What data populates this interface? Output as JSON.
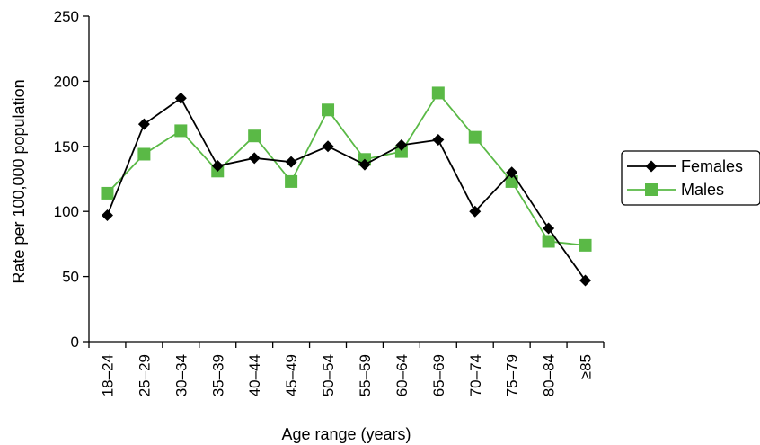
{
  "chart_data": {
    "type": "line",
    "xlabel": "Age range (years)",
    "ylabel": "Rate per 100,000 population",
    "categories": [
      "18–24",
      "25–29",
      "30–34",
      "35–39",
      "40–44",
      "45–49",
      "50–54",
      "55–59",
      "60–64",
      "65–69",
      "70–74",
      "75–79",
      "80–84",
      "≥85"
    ],
    "ylim": [
      0,
      250
    ],
    "yticks": [
      0,
      50,
      100,
      150,
      200,
      250
    ],
    "grid": false,
    "legend_position": "right",
    "series": [
      {
        "name": "Females",
        "marker": "diamond",
        "color": "#000000",
        "values": [
          97,
          167,
          187,
          135,
          141,
          138,
          150,
          136,
          151,
          155,
          100,
          130,
          87,
          47
        ]
      },
      {
        "name": "Males",
        "marker": "square",
        "color": "#5ab946",
        "values": [
          114,
          144,
          162,
          131,
          158,
          123,
          178,
          140,
          146,
          191,
          157,
          123,
          77,
          74
        ]
      }
    ]
  }
}
